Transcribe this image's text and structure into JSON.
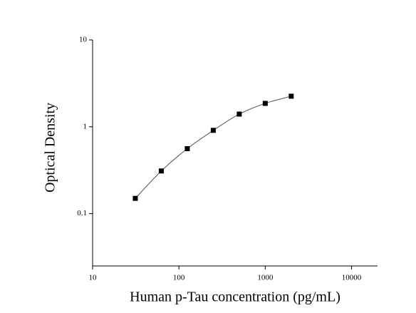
{
  "chart_data": {
    "type": "scatter",
    "x_label": "Human p-Tau concentration (pg/mL)",
    "y_label": "Optical Density",
    "x": [
      31.25,
      62.5,
      125,
      250,
      500,
      1000,
      2000
    ],
    "series": [
      {
        "color": "#000000",
        "values": [
          0.15,
          0.31,
          0.56,
          0.91,
          1.4,
          1.86,
          2.25
        ]
      }
    ],
    "fit_line": true,
    "xscale": "log",
    "yscale": "log",
    "xlim": [
      10,
      20000
    ],
    "ylim": [
      0.025,
      10
    ],
    "xticks": [
      10,
      100,
      1000,
      10000
    ],
    "yticks": [
      0.1,
      1,
      10
    ]
  }
}
